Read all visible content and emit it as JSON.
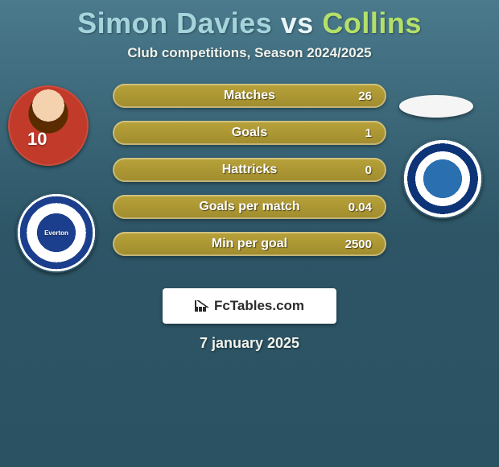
{
  "header": {
    "player1": "Simon Davies",
    "vs": "vs",
    "player2": "Collins",
    "subtitle": "Club competitions, Season 2024/2025"
  },
  "left": {
    "avatar_number": "10",
    "crest_text": "Everton"
  },
  "stats": [
    {
      "label": "Matches",
      "value": "26"
    },
    {
      "label": "Goals",
      "value": "1"
    },
    {
      "label": "Hattricks",
      "value": "0"
    },
    {
      "label": "Goals per match",
      "value": "0.04"
    },
    {
      "label": "Min per goal",
      "value": "2500"
    }
  ],
  "brand": {
    "text": "FcTables.com"
  },
  "footer": {
    "date": "7 january 2025"
  },
  "colors": {
    "bg_top": "#4a7a8c",
    "bg_bottom": "#2b5262",
    "bar_fill": "#b8a23a",
    "title_p1": "#a6d4dc",
    "title_p2": "#b4e06a"
  }
}
